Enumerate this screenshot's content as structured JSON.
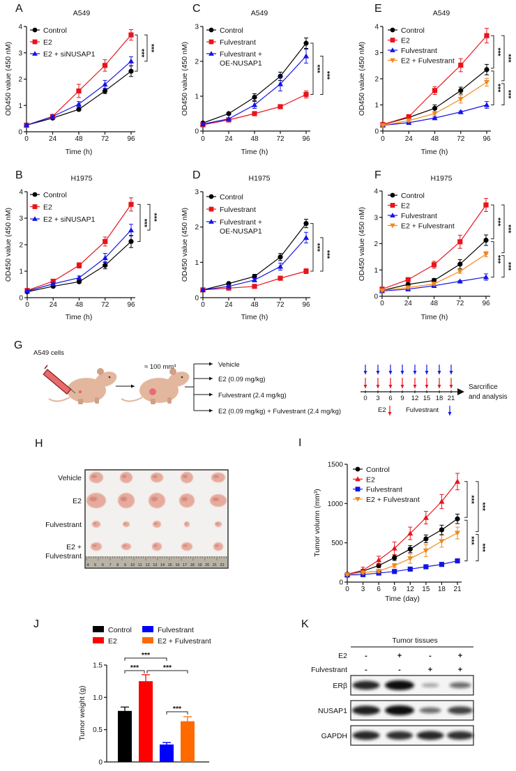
{
  "colors": {
    "control": "#000000",
    "e2": "#e8141b",
    "blue": "#1414e6",
    "orange": "#f08a1d",
    "bar_red": "#ff0000",
    "bar_blue": "#0000ff",
    "bar_orange": "#ff6a00"
  },
  "chart_data": [
    {
      "id": "A",
      "panel_label": "A",
      "type": "line",
      "title": "A549",
      "xlabel": "Time (h)",
      "ylabel": "OD450 value (450 nM)",
      "x": [
        0,
        24,
        48,
        72,
        96
      ],
      "xticks": [
        0,
        24,
        48,
        72,
        96
      ],
      "xlim": [
        0,
        96
      ],
      "ylim": [
        0,
        4
      ],
      "yticks": [
        0,
        1,
        2,
        3,
        4
      ],
      "legend": "top-left",
      "series": [
        {
          "name": "Control",
          "marker": "circle",
          "color": "#000000",
          "values": [
            0.25,
            0.52,
            0.85,
            1.55,
            2.3
          ],
          "errors": [
            0.03,
            0.03,
            0.05,
            0.1,
            0.2
          ]
        },
        {
          "name": "E2",
          "marker": "square",
          "color": "#e8141b",
          "values": [
            0.25,
            0.58,
            1.55,
            2.52,
            3.68
          ],
          "errors": [
            0.03,
            0.04,
            0.25,
            0.22,
            0.2
          ]
        },
        {
          "name": "E2 + siNUSAP1",
          "marker": "triangle-up",
          "color": "#1414e6",
          "values": [
            0.25,
            0.58,
            1.05,
            1.8,
            2.68
          ],
          "errors": [
            0.03,
            0.03,
            0.1,
            0.15,
            0.17
          ]
        }
      ],
      "significance": [
        {
          "a": 1,
          "b": 0,
          "label": "***"
        },
        {
          "a": 1,
          "b": 2,
          "label": "***"
        }
      ]
    },
    {
      "id": "B",
      "panel_label": "B",
      "type": "line",
      "title": "H1975",
      "xlabel": "Time (h)",
      "ylabel": "OD450 value (450 nM)",
      "x": [
        0,
        24,
        48,
        72,
        96
      ],
      "xticks": [
        0,
        24,
        48,
        72,
        96
      ],
      "xlim": [
        0,
        96
      ],
      "ylim": [
        0,
        4
      ],
      "yticks": [
        0,
        1,
        2,
        3,
        4
      ],
      "legend": "top-left",
      "series": [
        {
          "name": "Control",
          "marker": "circle",
          "color": "#000000",
          "values": [
            0.22,
            0.43,
            0.6,
            1.22,
            2.12
          ],
          "errors": [
            0.03,
            0.04,
            0.05,
            0.13,
            0.23
          ]
        },
        {
          "name": "E2",
          "marker": "square",
          "color": "#e8141b",
          "values": [
            0.27,
            0.62,
            1.22,
            2.12,
            3.52
          ],
          "errors": [
            0.03,
            0.05,
            0.1,
            0.17,
            0.25
          ]
        },
        {
          "name": "E2 + siNUSAP1",
          "marker": "triangle-up",
          "color": "#1414e6",
          "values": [
            0.25,
            0.52,
            0.75,
            1.5,
            2.55
          ],
          "errors": [
            0.03,
            0.04,
            0.07,
            0.17,
            0.22
          ]
        }
      ],
      "significance": [
        {
          "a": 1,
          "b": 0,
          "label": "***"
        },
        {
          "a": 1,
          "b": 2,
          "label": "***"
        }
      ]
    },
    {
      "id": "C",
      "panel_label": "C",
      "type": "line",
      "title": "A549",
      "xlabel": "Time (h)",
      "ylabel": "OD450 value (450 nM)",
      "x": [
        0,
        24,
        48,
        72,
        96
      ],
      "xticks": [
        0,
        24,
        48,
        72,
        96
      ],
      "xlim": [
        0,
        96
      ],
      "ylim": [
        0,
        3
      ],
      "yticks": [
        0,
        1,
        2,
        3
      ],
      "legend": "top-left",
      "series": [
        {
          "name": "Control",
          "marker": "circle",
          "color": "#000000",
          "values": [
            0.23,
            0.5,
            0.97,
            1.57,
            2.52
          ],
          "errors": [
            0.03,
            0.03,
            0.1,
            0.12,
            0.15
          ]
        },
        {
          "name": "Fulvestrant",
          "marker": "square",
          "color": "#e8141b",
          "values": [
            0.18,
            0.32,
            0.5,
            0.7,
            1.05
          ],
          "errors": [
            0.02,
            0.03,
            0.04,
            0.04,
            0.1
          ]
        },
        {
          "name": "Fulvestrant + OE-NUSAP1",
          "marker": "triangle-up",
          "color": "#1414e6",
          "values": [
            0.2,
            0.35,
            0.75,
            1.35,
            2.15
          ],
          "errors": [
            0.03,
            0.03,
            0.1,
            0.2,
            0.2
          ]
        }
      ],
      "significance": [
        {
          "a": 0,
          "b": 1,
          "label": "***"
        },
        {
          "a": 2,
          "b": 1,
          "label": "***"
        }
      ]
    },
    {
      "id": "D",
      "panel_label": "D",
      "type": "line",
      "title": "H1975",
      "xlabel": "Time (h)",
      "ylabel": "OD450 value (450 nM)",
      "x": [
        0,
        24,
        48,
        72,
        96
      ],
      "xticks": [
        0,
        24,
        48,
        72,
        96
      ],
      "xlim": [
        0,
        96
      ],
      "ylim": [
        0,
        3
      ],
      "yticks": [
        0,
        1,
        2,
        3
      ],
      "legend": "top-left",
      "series": [
        {
          "name": "Control",
          "marker": "circle",
          "color": "#000000",
          "values": [
            0.22,
            0.4,
            0.6,
            1.15,
            2.1
          ],
          "errors": [
            0.02,
            0.03,
            0.06,
            0.1,
            0.12
          ]
        },
        {
          "name": "Fulvestrant",
          "marker": "square",
          "color": "#e8141b",
          "values": [
            0.22,
            0.27,
            0.32,
            0.55,
            0.75
          ],
          "errors": [
            0.02,
            0.02,
            0.03,
            0.05,
            0.07
          ]
        },
        {
          "name": "Fulvestrant + OE-NUSAP1",
          "marker": "triangle-up",
          "color": "#1414e6",
          "values": [
            0.22,
            0.32,
            0.5,
            0.88,
            1.7
          ],
          "errors": [
            0.02,
            0.03,
            0.05,
            0.1,
            0.15
          ]
        }
      ],
      "significance": [
        {
          "a": 0,
          "b": 1,
          "label": "***"
        },
        {
          "a": 2,
          "b": 1,
          "label": "***"
        }
      ]
    },
    {
      "id": "E",
      "panel_label": "E",
      "type": "line",
      "title": "A549",
      "xlabel": "Time (h)",
      "ylabel": "OD450 value (450 nM)",
      "x": [
        0,
        24,
        48,
        72,
        96
      ],
      "xticks": [
        0,
        24,
        48,
        72,
        96
      ],
      "xlim": [
        0,
        96
      ],
      "ylim": [
        0,
        4
      ],
      "yticks": [
        0,
        1,
        2,
        3,
        4
      ],
      "legend": "top-left",
      "series": [
        {
          "name": "Control",
          "marker": "circle",
          "color": "#000000",
          "values": [
            0.25,
            0.52,
            0.87,
            1.55,
            2.35
          ],
          "errors": [
            0.03,
            0.04,
            0.13,
            0.13,
            0.2
          ]
        },
        {
          "name": "E2",
          "marker": "square",
          "color": "#e8141b",
          "values": [
            0.25,
            0.55,
            1.55,
            2.52,
            3.65
          ],
          "errors": [
            0.03,
            0.05,
            0.15,
            0.25,
            0.28
          ]
        },
        {
          "name": "Fulvestrant",
          "marker": "triangle-up",
          "color": "#1414e6",
          "values": [
            0.22,
            0.32,
            0.5,
            0.73,
            1.0
          ],
          "errors": [
            0.02,
            0.03,
            0.04,
            0.04,
            0.13
          ]
        },
        {
          "name": "E2 + Fulvestrant",
          "marker": "triangle-down",
          "color": "#f08a1d",
          "values": [
            0.22,
            0.4,
            0.67,
            1.22,
            1.87
          ],
          "errors": [
            0.03,
            0.04,
            0.07,
            0.15,
            0.15
          ]
        }
      ],
      "significance": [
        {
          "a": 1,
          "b": 0,
          "label": "***"
        },
        {
          "a": 1,
          "b": 3,
          "label": "***"
        },
        {
          "a": 0,
          "b": 2,
          "label": "***"
        },
        {
          "a": 3,
          "b": 2,
          "label": "***"
        }
      ]
    },
    {
      "id": "F",
      "panel_label": "F",
      "type": "line",
      "title": "H1975",
      "xlabel": "Time (h)",
      "ylabel": "OD450 value (450 nM)",
      "x": [
        0,
        24,
        48,
        72,
        96
      ],
      "xticks": [
        0,
        24,
        48,
        72,
        96
      ],
      "xlim": [
        0,
        96
      ],
      "ylim": [
        0,
        4
      ],
      "yticks": [
        0,
        1,
        2,
        3,
        4
      ],
      "legend": "top-left",
      "series": [
        {
          "name": "Control",
          "marker": "circle",
          "color": "#000000",
          "values": [
            0.22,
            0.45,
            0.6,
            1.22,
            2.13
          ],
          "errors": [
            0.03,
            0.04,
            0.08,
            0.17,
            0.2
          ]
        },
        {
          "name": "E2",
          "marker": "square",
          "color": "#e8141b",
          "values": [
            0.27,
            0.63,
            1.2,
            2.07,
            3.47
          ],
          "errors": [
            0.03,
            0.05,
            0.13,
            0.25,
            0.25
          ]
        },
        {
          "name": "Fulvestrant",
          "marker": "triangle-up",
          "color": "#1414e6",
          "values": [
            0.2,
            0.27,
            0.4,
            0.57,
            0.73
          ],
          "errors": [
            0.02,
            0.03,
            0.03,
            0.03,
            0.12
          ]
        },
        {
          "name": "E2 + Fulvestrant",
          "marker": "triangle-down",
          "color": "#f08a1d",
          "values": [
            0.22,
            0.33,
            0.47,
            0.95,
            1.6
          ],
          "errors": [
            0.03,
            0.04,
            0.05,
            0.08,
            0.1
          ]
        }
      ],
      "significance": [
        {
          "a": 1,
          "b": 0,
          "label": "***"
        },
        {
          "a": 1,
          "b": 3,
          "label": "***"
        },
        {
          "a": 0,
          "b": 2,
          "label": "***"
        },
        {
          "a": 3,
          "b": 2,
          "label": "***"
        }
      ]
    },
    {
      "id": "I",
      "panel_label": "I",
      "type": "line",
      "title": "",
      "xlabel": "Time (day)",
      "ylabel": "Tumor volumn (mm³)",
      "x": [
        0,
        3,
        6,
        9,
        12,
        15,
        18,
        21
      ],
      "xticks": [
        0,
        3,
        6,
        9,
        12,
        15,
        18,
        21
      ],
      "xlim": [
        0,
        21
      ],
      "ylim": [
        0,
        1500
      ],
      "yticks": [
        0,
        500,
        1000,
        1500
      ],
      "legend": "top-left",
      "series": [
        {
          "name": "Control",
          "marker": "circle",
          "color": "#000000",
          "values": [
            100,
            140,
            210,
            310,
            420,
            550,
            665,
            805
          ],
          "errors": [
            10,
            20,
            25,
            35,
            45,
            50,
            60,
            60
          ]
        },
        {
          "name": "E2",
          "marker": "triangle-up",
          "color": "#e8141b",
          "values": [
            100,
            150,
            280,
            430,
            620,
            820,
            1025,
            1280
          ],
          "errors": [
            10,
            40,
            50,
            80,
            80,
            80,
            90,
            105
          ]
        },
        {
          "name": "Fulvestrant",
          "marker": "square",
          "color": "#1414e6",
          "values": [
            90,
            95,
            115,
            135,
            165,
            195,
            225,
            270
          ],
          "errors": [
            10,
            10,
            10,
            10,
            10,
            15,
            15,
            15
          ]
        },
        {
          "name": "E2 + Fulvestrant",
          "marker": "triangle-down",
          "color": "#f08a1d",
          "values": [
            95,
            120,
            140,
            210,
            300,
            400,
            520,
            625
          ],
          "errors": [
            10,
            15,
            20,
            25,
            60,
            75,
            75,
            75
          ]
        }
      ],
      "significance": [
        {
          "a": 1,
          "b": 0,
          "label": "***"
        },
        {
          "a": 1,
          "b": 3,
          "label": "***"
        },
        {
          "a": 0,
          "b": 2,
          "label": "***"
        },
        {
          "a": 3,
          "b": 2,
          "label": "***"
        }
      ]
    },
    {
      "id": "J",
      "panel_label": "J",
      "type": "bar",
      "title": "",
      "xlabel": "",
      "ylabel": "Tumor weight (g)",
      "categories": [
        "Control",
        "E2",
        "Fulvestrant",
        "E2 + Fulvestrant"
      ],
      "values": [
        0.79,
        1.25,
        0.27,
        0.63
      ],
      "errors": [
        0.06,
        0.1,
        0.03,
        0.07
      ],
      "colors": [
        "#000000",
        "#ff0000",
        "#0000ff",
        "#ff6a00"
      ],
      "ylim": [
        0,
        1.5
      ],
      "yticks": [
        0,
        0.5,
        1.0,
        1.5
      ],
      "ytick_labels": [
        "0",
        "0.5",
        "1.0",
        "1.5"
      ],
      "legend": "top",
      "significance": [
        {
          "a": 0,
          "b": 1,
          "label": "***"
        },
        {
          "a": 1,
          "b": 3,
          "label": "***"
        },
        {
          "a": 0,
          "b": 2,
          "label": "***"
        },
        {
          "a": 2,
          "b": 3,
          "label": "***"
        }
      ]
    }
  ],
  "panel_g": {
    "label": "G",
    "cells": "A549 cells",
    "tumor_size": "≈ 100 mm³",
    "groups": [
      "Vehicle",
      "E2 (0.09 mg/kg)",
      "Fulvestrant (2.4 mg/kg)",
      "E2 (0.09 mg/kg) + Fulvestrant (2.4 mg/kg)"
    ],
    "timeline_days": [
      "0",
      "3",
      "6",
      "9",
      "12",
      "15",
      "18",
      "21"
    ],
    "endpoint": [
      "Sarcrifice",
      "and analysis"
    ],
    "legend_e2": "E2",
    "legend_fulvestrant": "Fulvestrant"
  },
  "panel_h": {
    "label": "H",
    "rows": [
      "Vehicle",
      "E2",
      "Fulvestrant"
    ],
    "row4": [
      "E2 +",
      "Fulvestrant"
    ],
    "ruler_numbers": [
      "4",
      "5",
      "6",
      "7",
      "8",
      "9",
      "10",
      "11",
      "12",
      "13",
      "14",
      "15",
      "16",
      "17",
      "18",
      "19",
      "20",
      "21",
      "22"
    ]
  },
  "panel_k": {
    "label": "K",
    "header": "Tumor tissues",
    "conditions": [
      {
        "label": "E2",
        "signs": [
          "-",
          "+",
          "-",
          "+"
        ]
      },
      {
        "label": "Fulvestrant",
        "signs": [
          "-",
          "-",
          "+",
          "+"
        ]
      }
    ],
    "blots": [
      {
        "label": "ERβ",
        "intensity": [
          0.85,
          1.0,
          0.15,
          0.45
        ]
      },
      {
        "label": "NUSAP1",
        "intensity": [
          0.9,
          1.0,
          0.45,
          0.7
        ]
      },
      {
        "label": "GAPDH",
        "intensity": [
          0.85,
          0.8,
          0.85,
          0.8
        ]
      }
    ]
  }
}
